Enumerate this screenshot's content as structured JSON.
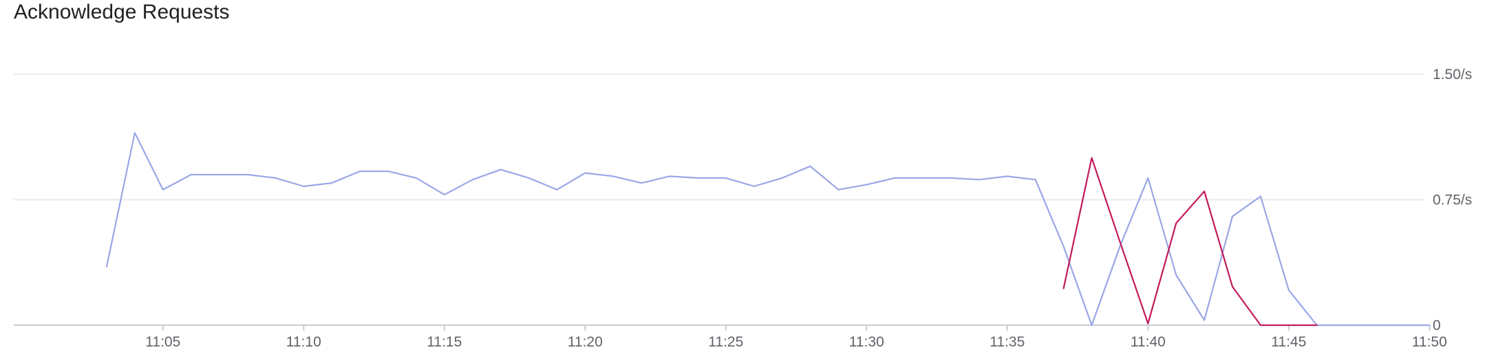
{
  "chart_data": {
    "type": "line",
    "title": "Acknowledge Requests",
    "xlabel": "",
    "ylabel": "",
    "y_axis_position": "right",
    "grid": true,
    "ylim": [
      0,
      1.5
    ],
    "yticks": [
      {
        "value": 0,
        "label": "0"
      },
      {
        "value": 0.75,
        "label": "0.75/s"
      },
      {
        "value": 1.5,
        "label": "1.50/s"
      }
    ],
    "xlim": [
      "11:00",
      "11:50"
    ],
    "xticks": [
      "11:05",
      "11:10",
      "11:15",
      "11:20",
      "11:25",
      "11:30",
      "11:35",
      "11:40",
      "11:45",
      "11:50"
    ],
    "series": [
      {
        "color": "#9aa6e6",
        "x": [
          "11:03",
          "11:04",
          "11:05",
          "11:06",
          "11:07",
          "11:08",
          "11:09",
          "11:10",
          "11:11",
          "11:12",
          "11:13",
          "11:14",
          "11:15",
          "11:16",
          "11:17",
          "11:18",
          "11:19",
          "11:20",
          "11:21",
          "11:22",
          "11:23",
          "11:24",
          "11:25",
          "11:26",
          "11:27",
          "11:28",
          "11:29",
          "11:30",
          "11:31",
          "11:32",
          "11:33",
          "11:34",
          "11:35",
          "11:36",
          "11:37",
          "11:38",
          "11:39",
          "11:40",
          "11:41",
          "11:42",
          "11:43",
          "11:44",
          "11:45",
          "11:46",
          "11:47",
          "11:48",
          "11:49",
          "11:50"
        ],
        "values": [
          0.35,
          1.15,
          0.81,
          0.9,
          0.9,
          0.9,
          0.88,
          0.83,
          0.85,
          0.92,
          0.92,
          0.88,
          0.78,
          0.87,
          0.93,
          0.88,
          0.81,
          0.91,
          0.89,
          0.85,
          0.89,
          0.88,
          0.88,
          0.83,
          0.88,
          0.95,
          0.81,
          0.84,
          0.88,
          0.88,
          0.88,
          0.87,
          0.89,
          0.87,
          0.47,
          0.0,
          0.47,
          0.88,
          0.3,
          0.03,
          0.65,
          0.77,
          0.21,
          0.0,
          0.0,
          0.0,
          0.0,
          0.0
        ]
      },
      {
        "color": "#c2185b",
        "x": [
          "11:37",
          "11:38",
          "11:39",
          "11:40",
          "11:41",
          "11:42",
          "11:43",
          "11:44",
          "11:45",
          "11:46"
        ],
        "values": [
          0.22,
          1.0,
          0.5,
          0.01,
          0.61,
          0.8,
          0.23,
          0.0,
          0.0,
          0.0
        ]
      }
    ]
  }
}
